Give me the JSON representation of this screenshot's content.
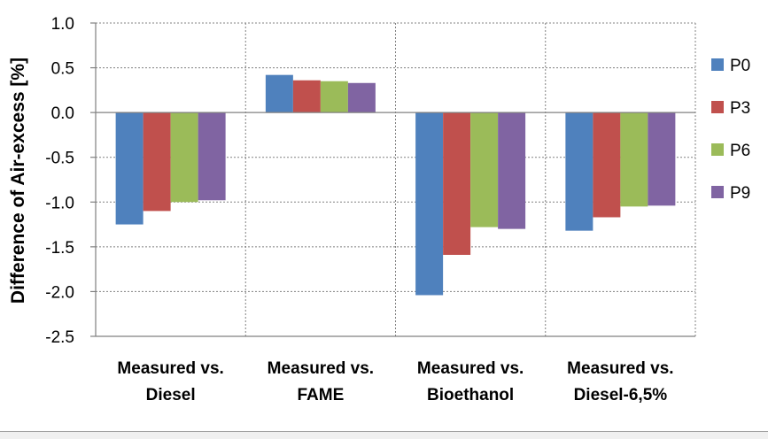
{
  "chart_data": {
    "type": "bar",
    "title": "",
    "xlabel": "",
    "ylabel": "Difference of Air-excess [%]",
    "ylim": [
      -2.5,
      1.0
    ],
    "yticks": [
      1.0,
      0.5,
      0.0,
      -0.5,
      -1.0,
      -1.5,
      -2.0,
      -2.5
    ],
    "ytick_labels": [
      "1.0",
      "0.5",
      "0.0",
      "-0.5",
      "-1.0",
      "-1.5",
      "-2.0",
      "-2.5"
    ],
    "grid": true,
    "legend_position": "right",
    "categories": [
      [
        "Measured vs.",
        "Diesel"
      ],
      [
        "Measured vs.",
        "FAME"
      ],
      [
        "Measured vs.",
        "Bioethanol"
      ],
      [
        "Measured vs.",
        "Diesel-6,5%"
      ]
    ],
    "series": [
      {
        "name": "P0",
        "color": "#4f81bd",
        "values": [
          -1.25,
          0.42,
          -2.04,
          -1.32
        ]
      },
      {
        "name": "P3",
        "color": "#c0504d",
        "values": [
          -1.1,
          0.36,
          -1.59,
          -1.17
        ]
      },
      {
        "name": "P6",
        "color": "#9bbb59",
        "values": [
          -1.0,
          0.35,
          -1.28,
          -1.05
        ]
      },
      {
        "name": "P9",
        "color": "#8064a2",
        "values": [
          -0.98,
          0.33,
          -1.3,
          -1.04
        ]
      }
    ]
  }
}
